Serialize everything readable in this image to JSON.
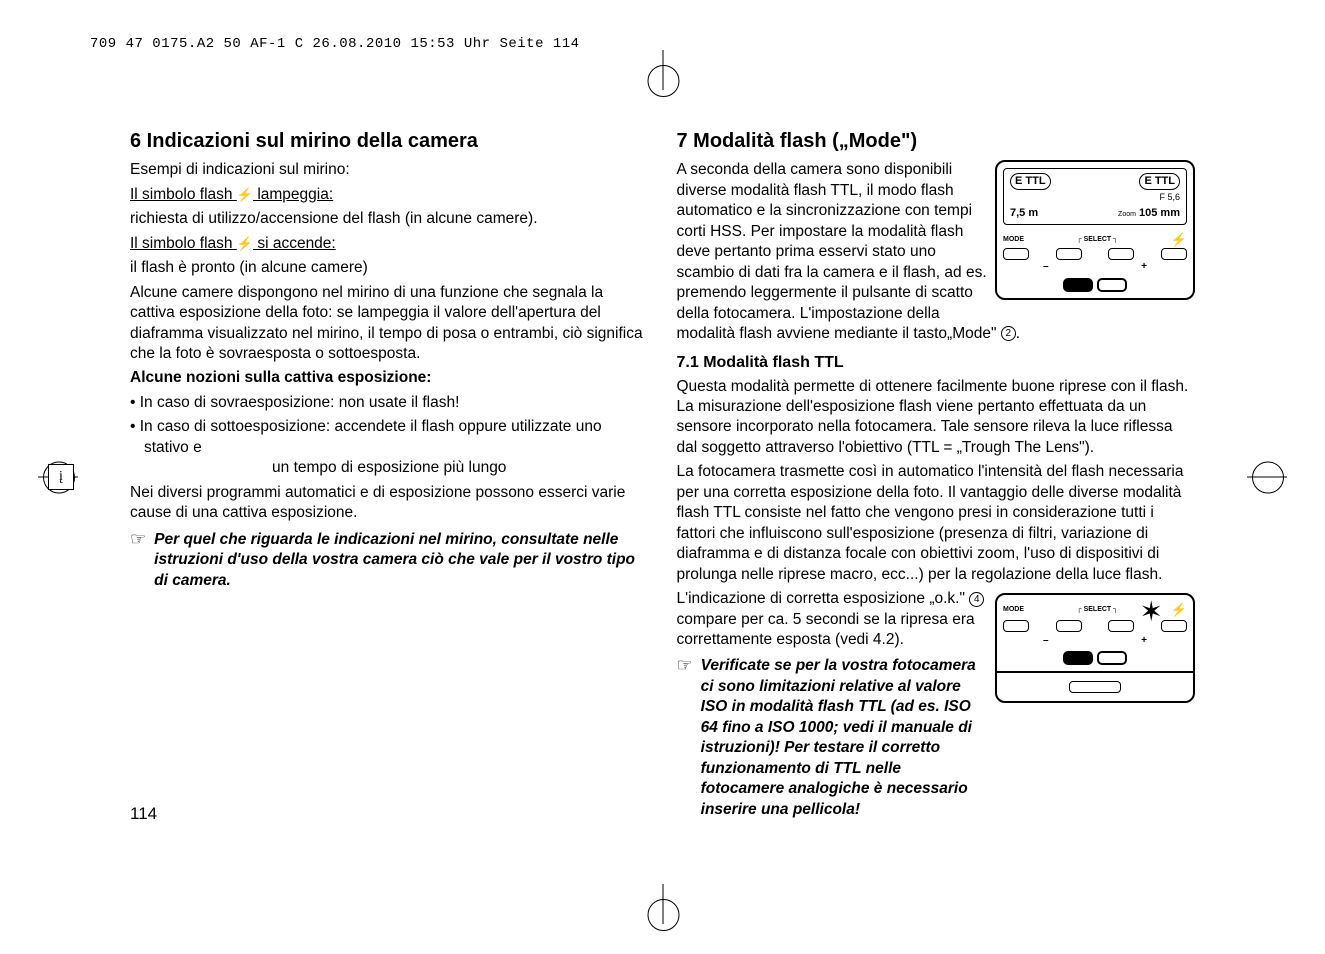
{
  "header": "709 47 0175.A2 50 AF-1 C  26.08.2010  15:53 Uhr  Seite 114",
  "pageNumber": "114",
  "langIndicator": "į",
  "left": {
    "h6": "6 Indicazioni sul mirino della camera",
    "p1": "Esempi di indicazioni sul mirino:",
    "u1a": "Il simbolo flash ",
    "u1b": " lampeggia:",
    "p2": "richiesta di utilizzo/accensione del flash (in alcune camere).",
    "u2a": "Il simbolo flash ",
    "u2b": " si accende:",
    "p3": "il flash è pronto (in alcune camere)",
    "p4": "Alcune camere dispongono nel mirino di una funzione che segnala la cattiva esposizione della foto: se lampeggia il valore dell'apertura del diaframma visualizzato nel mirino, il tempo di posa o entrambi, ciò significa che la foto è sovraesposta o sottoesposta.",
    "b1": "Alcune nozioni sulla cattiva esposizione:",
    "li1": "• In caso di sovraesposizione: non usate il flash!",
    "li2a": "• In caso di sottoesposizione: accendete il flash oppure utilizzate uno stativo e",
    "li2b": "un tempo di esposizione più lungo",
    "p5": "Nei diversi programmi automatici e di esposizione possono esserci varie cause di una cattiva esposizione.",
    "note1": "Per quel che riguarda le indicazioni nel mirino, consultate nelle istruzioni d'uso della vostra camera ciò che vale per il vostro tipo di camera."
  },
  "right": {
    "h7": "7 Modalità flash („Mode\")",
    "p1a": "A seconda della camera sono disponibili diverse modalità flash TTL, il modo flash automatico e la sincronizzazione con tempi corti HSS. Per impostare la modalità flash deve pertanto prima esservi stato uno scambio di dati fra la camera e il flash, ad es. premendo leggermente il pulsante di scatto della fotocamera. L'impostazione della modalità flash avviene mediante il tasto„Mode\" ",
    "circ2": "2",
    "h71": "7.1 Modalità flash TTL",
    "p2": "Questa modalità permette di ottenere facilmente buone riprese con il flash. La misurazione dell'esposizione flash viene pertanto effettuata da un sensore incorporato nella fotocamera. Tale sensore rileva la luce riflessa dal soggetto attraverso l'obiettivo (TTL = „Trough The Lens\").",
    "p3": "La fotocamera trasmette così in automatico l'intensità del flash necessaria per una corretta esposizione della foto. Il vantaggio delle diverse modalità flash TTL consiste nel fatto che vengono presi in considerazione tutti i fattori che influiscono sull'esposizione (presenza di filtri, variazione di diaframma e di distanza focale con obiettivi zoom, l'uso di dispositivi di prolunga nelle riprese macro, ecc...) per la regolazione della luce flash.",
    "p4a": "L'indicazione di corretta esposizione „o.k.\" ",
    "circ4": "4",
    "p4b": " compare per ca. 5 secondi se la ripresa era correttamente esposta (vedi 4.2).",
    "note2": "Verificate se per la vostra fotocamera ci sono limitazioni relative al valore ISO in modalità flash TTL (ad es. ISO 64 fino a ISO 1000; vedi il manuale di istruzioni)! Per testare il corretto funzionamento di TTL nelle fotocamere analogiche è necessario inserire una pellicola!"
  },
  "diagram1": {
    "ettl1": "E TTL",
    "ettl2": "E TTL",
    "f": "F 5,6",
    "dist": "7,5 m",
    "zoomlabel": "Zoom",
    "zoom": "105 mm",
    "mode": "MODE",
    "select": "SELECT",
    "minus": "–",
    "plus": "+"
  },
  "diagram2": {
    "mode": "MODE",
    "select": "SELECT",
    "minus": "–",
    "plus": "+"
  },
  "icons": {
    "flash": "⚡",
    "pointer": "☞"
  }
}
